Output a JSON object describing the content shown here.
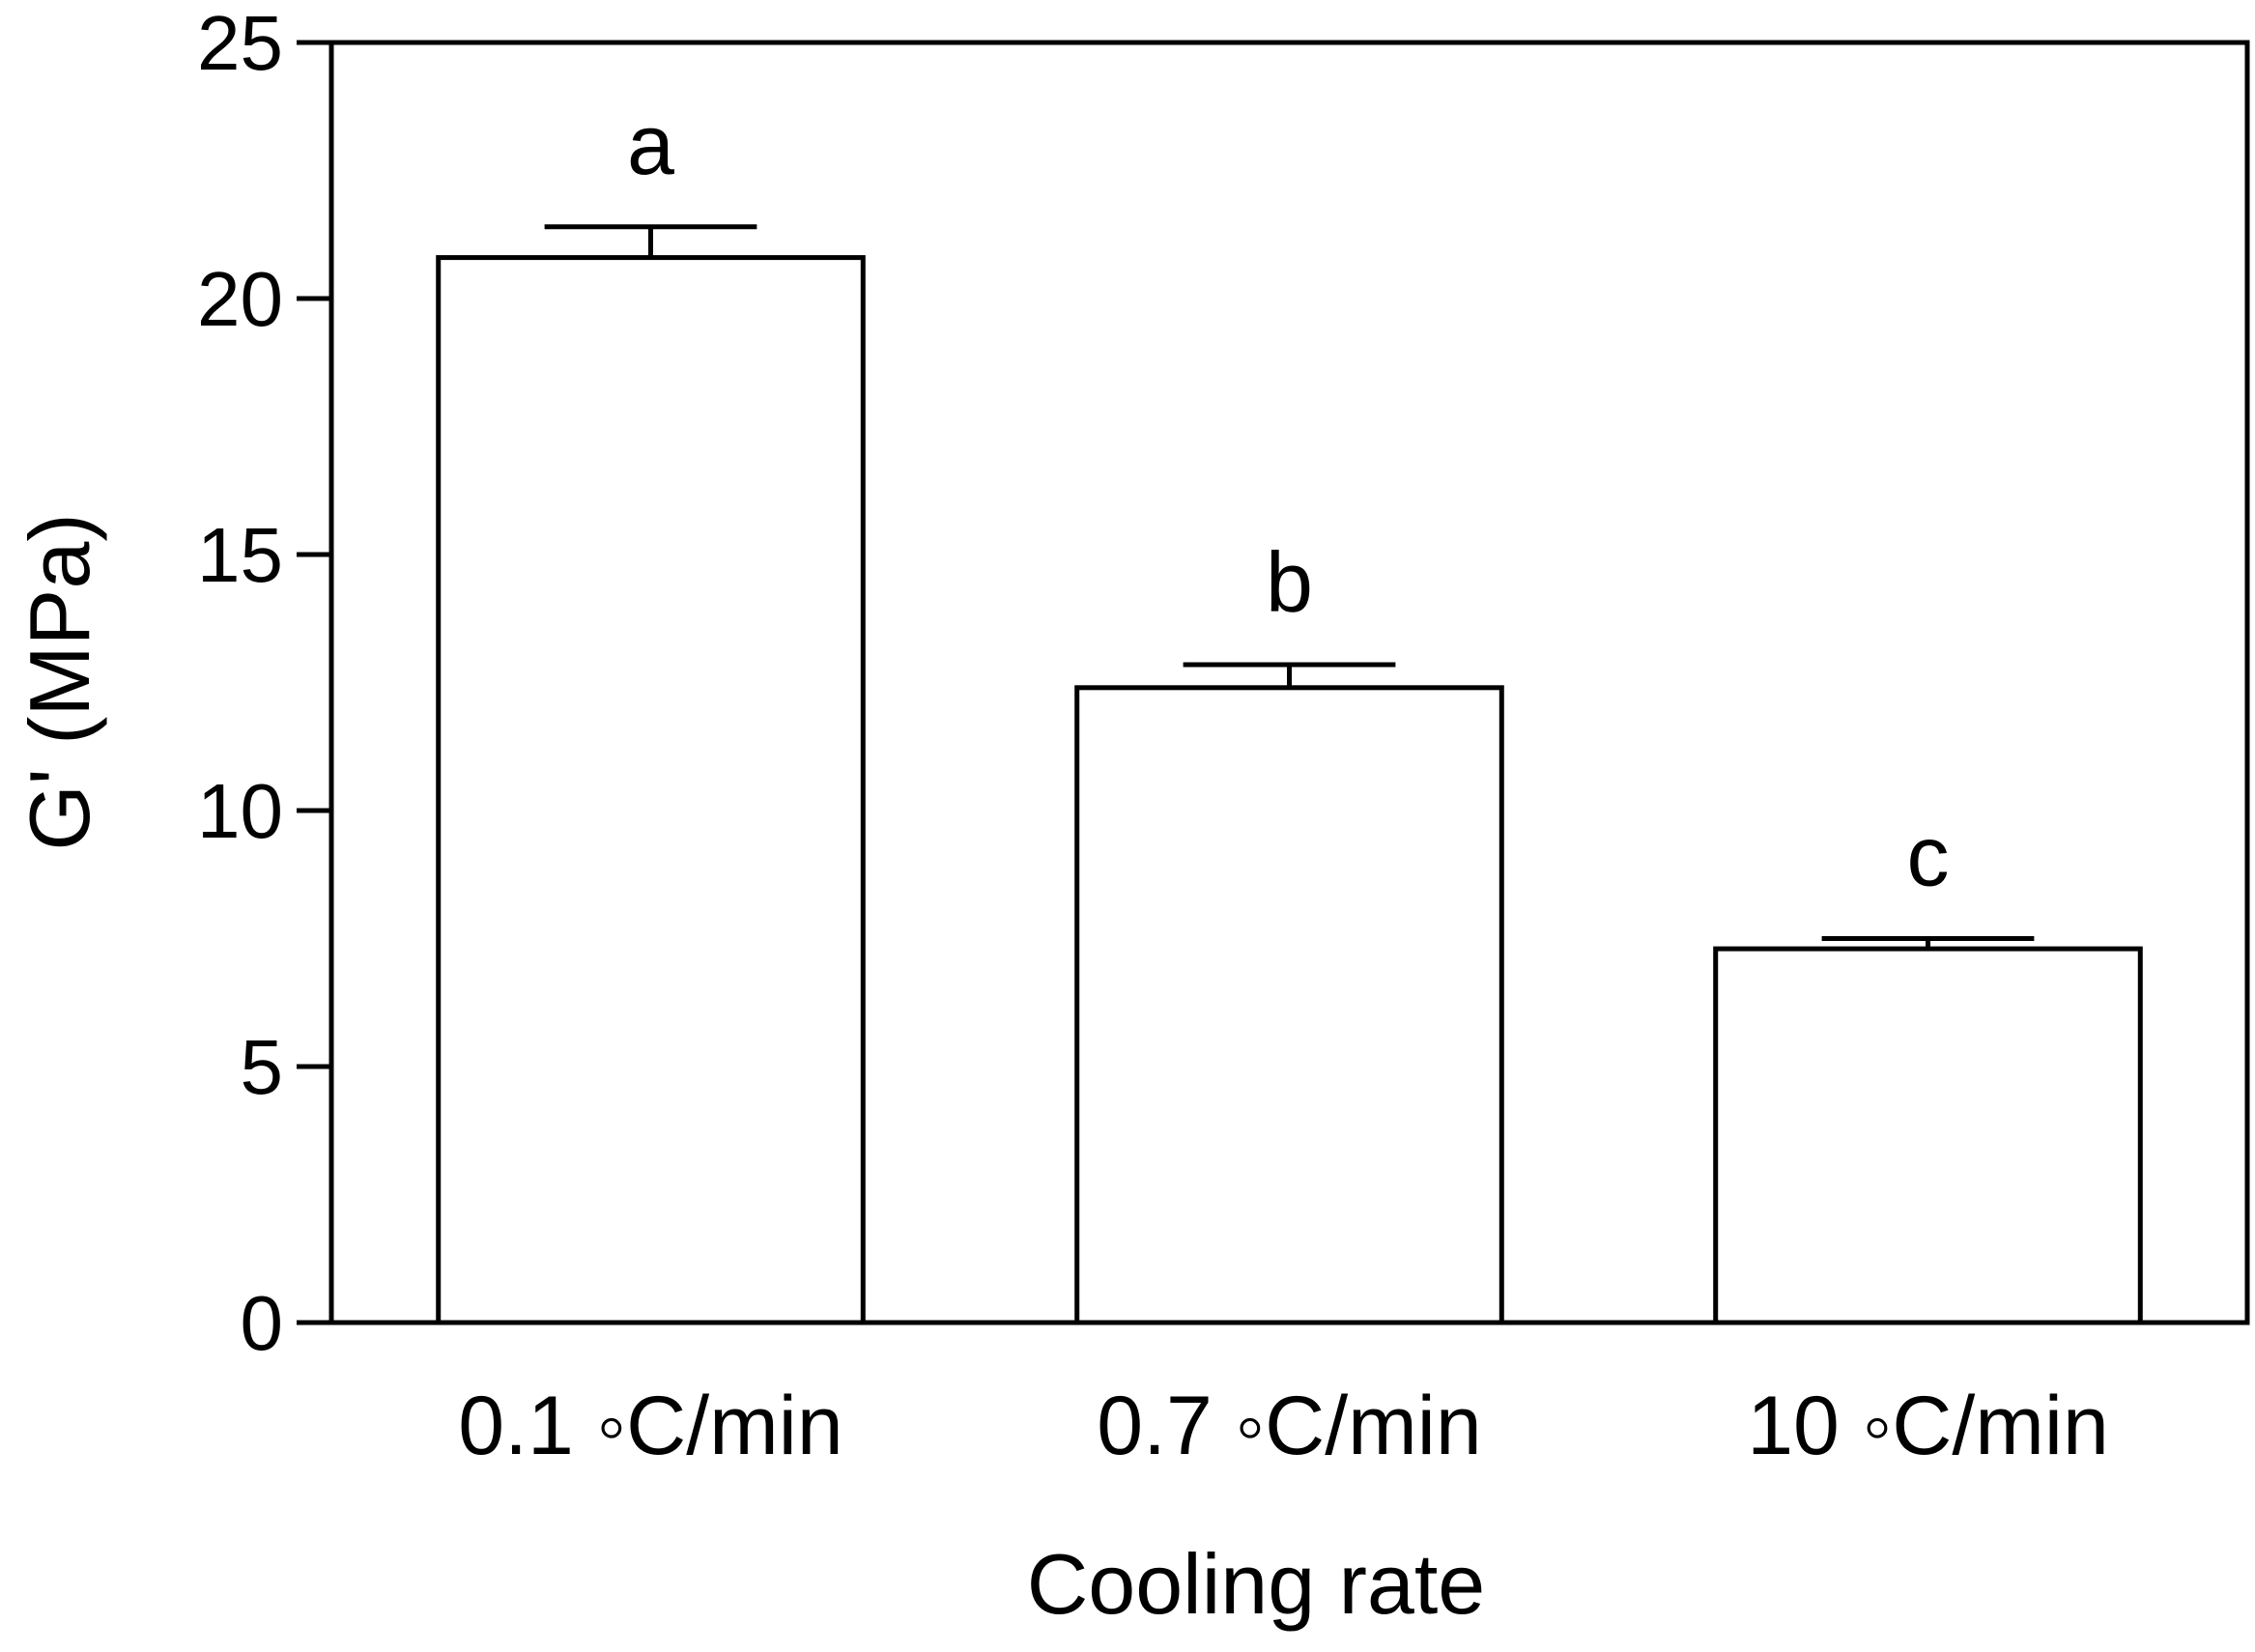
{
  "chart_data": {
    "type": "bar",
    "categories": [
      "0.1 ◦C/min",
      "0.7 ◦C/min",
      "10 ◦C/min"
    ],
    "values": [
      20.8,
      12.4,
      7.3
    ],
    "errors": [
      0.6,
      0.45,
      0.2
    ],
    "significance_labels": [
      "a",
      "b",
      "c"
    ],
    "xlabel": "Cooling rate",
    "ylabel": "G' (MPa)",
    "ylim": [
      0,
      25
    ],
    "yticks": [
      0,
      5,
      10,
      15,
      20,
      25
    ],
    "ytick_labels": [
      "0",
      "5",
      "10",
      "15",
      "20",
      "25"
    ],
    "grid": false,
    "bar_fill": "#ffffff",
    "bar_stroke": "#000000"
  }
}
